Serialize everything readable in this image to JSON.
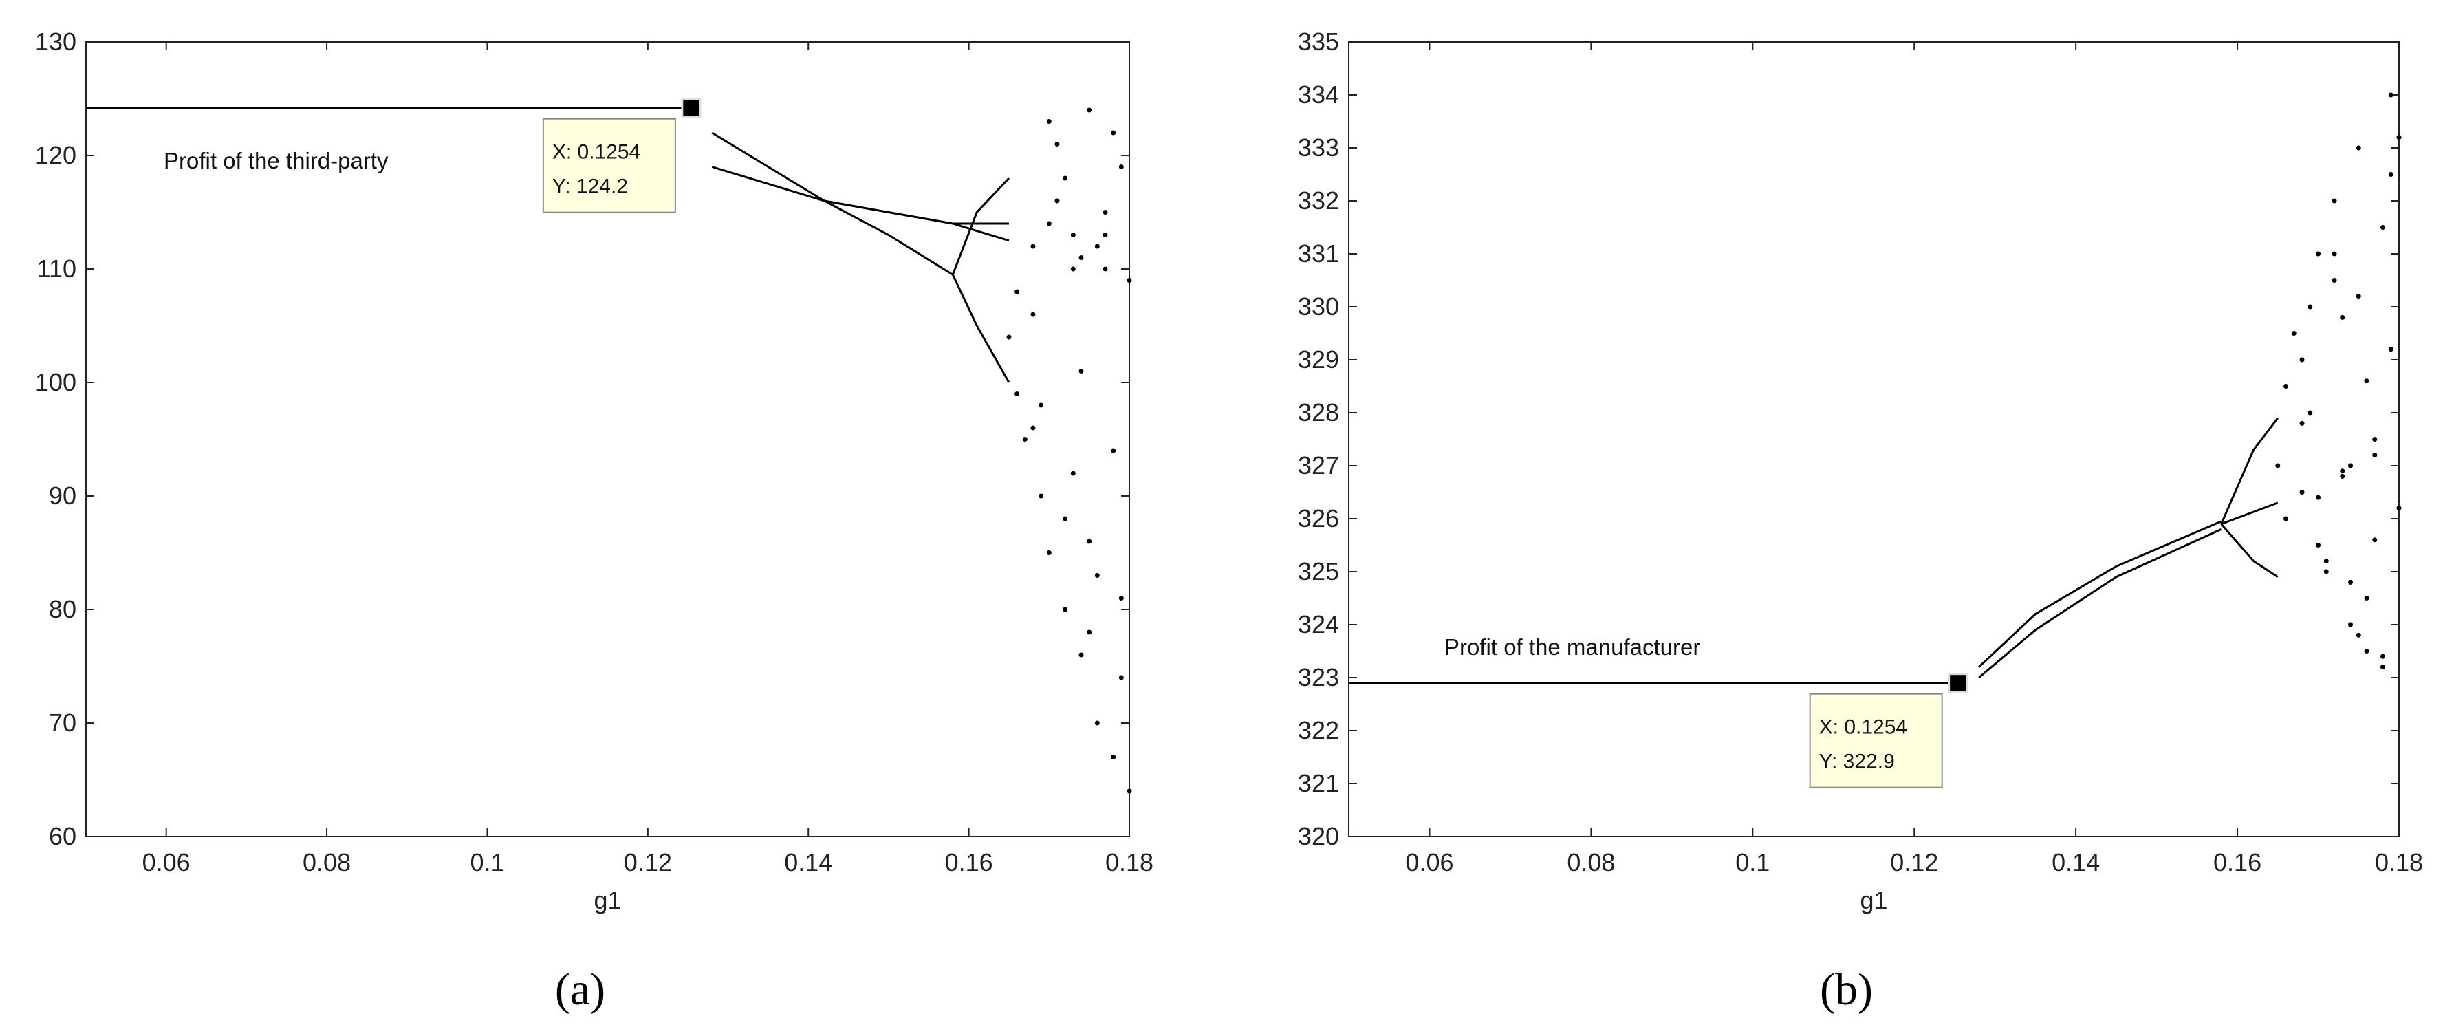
{
  "chart_data": [
    {
      "type": "bifurcation",
      "panel_label": "(a)",
      "x_label": "g1",
      "annotation": "Profit of the third-party",
      "xlim": [
        0.05,
        0.18
      ],
      "ylim": [
        60,
        130
      ],
      "xticks": [
        0.06,
        0.08,
        0.1,
        0.12,
        0.14,
        0.16,
        0.18
      ],
      "yticks": [
        60,
        70,
        80,
        90,
        100,
        110,
        120,
        130
      ],
      "color": "#000000",
      "datatip": {
        "x": 0.1254,
        "y": 124.2,
        "x_label": "X: 0.1254",
        "y_label": "Y: 124.2"
      },
      "series": [
        {
          "style": "line",
          "x": [
            0.05,
            0.1254
          ],
          "values": [
            124.2,
            124.2
          ]
        },
        {
          "style": "line",
          "x": [
            0.128,
            0.135,
            0.142,
            0.15,
            0.158
          ],
          "values": [
            122,
            119,
            116,
            113,
            109.5
          ]
        },
        {
          "style": "line",
          "x": [
            0.128,
            0.135,
            0.142,
            0.15,
            0.158
          ],
          "values": [
            119,
            117.5,
            116,
            115,
            114
          ]
        },
        {
          "style": "line",
          "x": [
            0.158,
            0.161,
            0.165
          ],
          "values": [
            109.5,
            105,
            100
          ]
        },
        {
          "style": "line",
          "x": [
            0.158,
            0.161,
            0.165
          ],
          "values": [
            109.5,
            115,
            118
          ]
        },
        {
          "style": "line",
          "x": [
            0.158,
            0.165
          ],
          "values": [
            114,
            114
          ]
        },
        {
          "style": "line",
          "x": [
            0.158,
            0.165
          ],
          "values": [
            114,
            112.5
          ]
        },
        {
          "style": "points",
          "x": [
            0.165,
            0.166,
            0.167,
            0.168,
            0.169,
            0.17,
            0.171,
            0.172,
            0.173,
            0.174,
            0.175,
            0.176,
            0.177,
            0.178,
            0.179,
            0.166,
            0.168,
            0.17,
            0.172,
            0.174,
            0.176,
            0.178,
            0.18,
            0.169,
            0.171,
            0.173,
            0.175,
            0.177,
            0.179,
            0.18,
            0.17,
            0.172,
            0.174,
            0.176,
            0.178,
            0.168,
            0.175,
            0.177,
            0.179,
            0.173
          ],
          "values": [
            104,
            99,
            95,
            112,
            90,
            85,
            121,
            80,
            113,
            76,
            124,
            70,
            110,
            67,
            119,
            108,
            96,
            114,
            88,
            111,
            83,
            122,
            109,
            98,
            116,
            92,
            78,
            115,
            74,
            64,
            123,
            118,
            101,
            112,
            94,
            106,
            86,
            113,
            81,
            110
          ]
        }
      ]
    },
    {
      "type": "bifurcation",
      "panel_label": "(b)",
      "x_label": "g1",
      "annotation": "Profit of the manufacturer",
      "xlim": [
        0.05,
        0.18
      ],
      "ylim": [
        320,
        335
      ],
      "xticks": [
        0.06,
        0.08,
        0.1,
        0.12,
        0.14,
        0.16,
        0.18
      ],
      "yticks": [
        320,
        321,
        322,
        323,
        324,
        325,
        326,
        327,
        328,
        329,
        330,
        331,
        332,
        333,
        334,
        335
      ],
      "color": "#000000",
      "datatip": {
        "x": 0.1254,
        "y": 322.9,
        "x_label": "X: 0.1254",
        "y_label": "Y: 322.9"
      },
      "series": [
        {
          "style": "line",
          "x": [
            0.05,
            0.1254
          ],
          "values": [
            322.9,
            322.9
          ]
        },
        {
          "style": "line",
          "x": [
            0.128,
            0.135,
            0.145,
            0.158
          ],
          "values": [
            323.2,
            324.2,
            325.1,
            325.95
          ]
        },
        {
          "style": "line",
          "x": [
            0.128,
            0.135,
            0.145,
            0.158
          ],
          "values": [
            323,
            323.9,
            324.9,
            325.8
          ]
        },
        {
          "style": "line",
          "x": [
            0.158,
            0.162,
            0.165
          ],
          "values": [
            325.9,
            327.3,
            327.9
          ]
        },
        {
          "style": "line",
          "x": [
            0.158,
            0.162,
            0.165
          ],
          "values": [
            325.9,
            325.2,
            324.9
          ]
        },
        {
          "style": "line",
          "x": [
            0.158,
            0.165
          ],
          "values": [
            325.9,
            326.3
          ]
        },
        {
          "style": "points",
          "x": [
            0.165,
            0.166,
            0.167,
            0.168,
            0.169,
            0.17,
            0.171,
            0.172,
            0.173,
            0.174,
            0.175,
            0.176,
            0.177,
            0.178,
            0.179,
            0.166,
            0.168,
            0.17,
            0.172,
            0.174,
            0.176,
            0.178,
            0.18,
            0.169,
            0.171,
            0.173,
            0.175,
            0.177,
            0.179,
            0.18,
            0.17,
            0.172,
            0.174,
            0.176,
            0.178,
            0.168,
            0.175,
            0.177,
            0.179,
            0.173
          ],
          "values": [
            327,
            328.5,
            329.5,
            326.5,
            330,
            331,
            325,
            332,
            326.8,
            324,
            333,
            323.5,
            327.5,
            323.2,
            334,
            326,
            329,
            325.5,
            330.5,
            327,
            324.5,
            331.5,
            326.2,
            328,
            325.2,
            329.8,
            323.8,
            327.2,
            332.5,
            333.2,
            326.4,
            331,
            324.8,
            328.6,
            323.4,
            327.8,
            330.2,
            325.6,
            329.2,
            326.9
          ]
        }
      ]
    }
  ]
}
